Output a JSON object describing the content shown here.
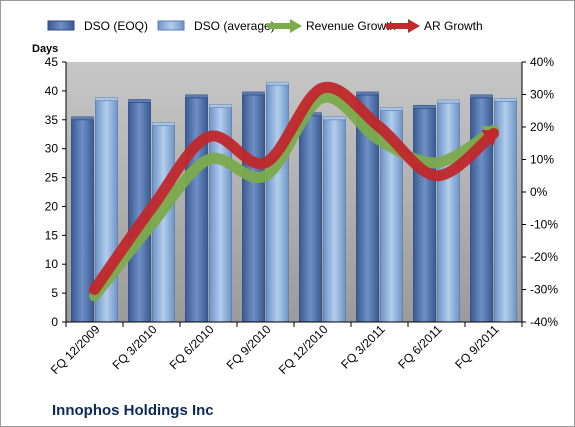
{
  "chart_data": {
    "type": "bar",
    "title": "Innophos Holdings Inc",
    "ylabel": "Days",
    "categories": [
      "FQ 12/2009",
      "FQ 3/2010",
      "FQ 6/2010",
      "FQ 9/2010",
      "FQ 12/2010",
      "FQ 3/2011",
      "FQ 6/2011",
      "FQ 9/2011"
    ],
    "ylim": [
      0,
      45
    ],
    "y_ticks": [
      0,
      5,
      10,
      15,
      20,
      25,
      30,
      35,
      40,
      45
    ],
    "y2lim": [
      -40,
      40
    ],
    "y2_ticks": [
      "-40%",
      "-30%",
      "-20%",
      "-10%",
      "0%",
      "10%",
      "20%",
      "30%",
      "40%"
    ],
    "grid": false,
    "legend_position": "top",
    "series": [
      {
        "name": "DSO (EOQ)",
        "kind": "bar",
        "axis": "left",
        "color": "#4f6fa8",
        "values": [
          35,
          38,
          38.8,
          39.3,
          35.7,
          39.3,
          37,
          38.8
        ]
      },
      {
        "name": "DSO (average)",
        "kind": "bar",
        "axis": "left",
        "color": "#8db0dc",
        "values": [
          38.3,
          34,
          37.1,
          41,
          35,
          36.6,
          37.9,
          38.2
        ]
      },
      {
        "name": "Revenue Growth",
        "kind": "line-arrow",
        "axis": "right",
        "color": "#7cab4b",
        "values": [
          -32,
          -10,
          10,
          5,
          29,
          16,
          9,
          19
        ]
      },
      {
        "name": "AR Growth",
        "kind": "line-arrow",
        "axis": "right",
        "color": "#c0282b",
        "values": [
          -30,
          -5,
          17,
          9,
          32,
          20,
          5,
          18
        ]
      }
    ]
  }
}
